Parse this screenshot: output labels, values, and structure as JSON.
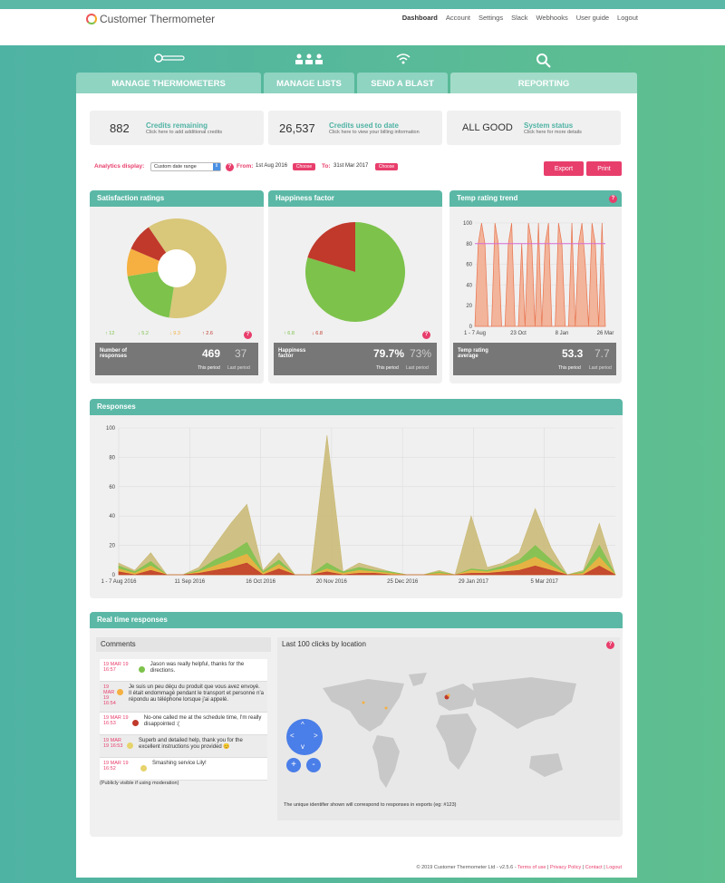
{
  "app": {
    "name": "Customer Thermometer"
  },
  "nav": [
    "Dashboard",
    "Account",
    "Settings",
    "Slack",
    "Webhooks",
    "User guide",
    "Logout"
  ],
  "tabs": [
    "MANAGE THERMOMETERS",
    "MANAGE LISTS",
    "SEND A BLAST",
    "REPORTING"
  ],
  "stats": [
    {
      "value": "882",
      "title": "Credits remaining",
      "sub": "Click here to add additional credits"
    },
    {
      "value": "26,537",
      "title": "Credits used to date",
      "sub": "Click here to view your billing information"
    },
    {
      "value": "ALL GOOD",
      "title": "System status",
      "sub": "Click here for more details"
    }
  ],
  "analytics": {
    "label": "Analytics display:",
    "select": "Custom date range",
    "from_label": "From:",
    "from": "1st Aug 2016",
    "to_label": "To:",
    "to": "31st Mar 2017",
    "choose": "Choose",
    "export": "Export",
    "print": "Print"
  },
  "satisfaction": {
    "title": "Satisfaction ratings",
    "stats": [
      "↑ 12",
      "↓ 5.2",
      "↓ 9.3",
      "↑ 2.6"
    ],
    "label": "Number of responses",
    "this": "469",
    "last": "37",
    "this_label": "This period",
    "last_label": "Last period"
  },
  "happiness": {
    "title": "Happiness factor",
    "stats": [
      "↑ 6.8",
      "↓ 6.8"
    ],
    "label": "Happiness factor",
    "this": "79.7%",
    "last": "73%",
    "this_label": "This period",
    "last_label": "Last period"
  },
  "temp": {
    "title": "Temp rating trend",
    "label": "Temp rating average",
    "this": "53.3",
    "last": "7.7",
    "this_label": "This period",
    "last_label": "Last period"
  },
  "chart_data": [
    {
      "type": "pie",
      "title": "Satisfaction ratings",
      "labels": [
        "Gold",
        "Green",
        "Amber",
        "Red"
      ],
      "values": [
        62,
        20,
        9,
        9
      ],
      "colors": [
        "#d9c77a",
        "#7dc24b",
        "#f5b041",
        "#c0392b"
      ],
      "donut": true
    },
    {
      "type": "pie",
      "title": "Happiness factor",
      "labels": [
        "Happy",
        "Unhappy"
      ],
      "values": [
        79.7,
        20.3
      ],
      "colors": [
        "#7dc24b",
        "#c0392b"
      ]
    },
    {
      "type": "area",
      "title": "Temp rating trend",
      "x_ticks": [
        "1 - 7 Aug",
        "23 Oct",
        "8 Jan",
        "26 Mar"
      ],
      "y_ticks": [
        0,
        20,
        40,
        60,
        80,
        100
      ],
      "ylim": [
        0,
        100
      ],
      "values": [
        0,
        80,
        100,
        80,
        0,
        0,
        100,
        80,
        0,
        0,
        80,
        100,
        0,
        0,
        80,
        0,
        100,
        80,
        0,
        100,
        0,
        80,
        100,
        0,
        0,
        100,
        80,
        0,
        0,
        100,
        0,
        80,
        100,
        60,
        0,
        100,
        80,
        0,
        100,
        0
      ]
    },
    {
      "type": "area",
      "title": "Responses",
      "x_ticks": [
        "1 - 7 Aug 2016",
        "11 Sep 2016",
        "16 Oct 2016",
        "20 Nov 2016",
        "25 Dec 2016",
        "29 Jan 2017",
        "5 Mar 2017"
      ],
      "y_ticks": [
        0,
        20,
        40,
        60,
        80,
        100
      ],
      "ylim": [
        0,
        100
      ],
      "series": [
        {
          "name": "Gold",
          "color": "#c9b872",
          "values": [
            8,
            3,
            15,
            0,
            0,
            5,
            20,
            35,
            48,
            3,
            15,
            0,
            0,
            95,
            2,
            8,
            5,
            2,
            0,
            0,
            3,
            0,
            40,
            5,
            8,
            15,
            45,
            18,
            0,
            3,
            35,
            0
          ]
        },
        {
          "name": "Green",
          "color": "#7dc24b",
          "values": [
            6,
            2,
            9,
            0,
            0,
            3,
            10,
            15,
            22,
            2,
            10,
            0,
            0,
            8,
            2,
            5,
            3,
            2,
            0,
            0,
            2,
            0,
            4,
            3,
            6,
            10,
            20,
            10,
            0,
            2,
            20,
            0
          ]
        },
        {
          "name": "Amber",
          "color": "#f5b041",
          "values": [
            4,
            1,
            6,
            0,
            0,
            2,
            6,
            10,
            14,
            1,
            7,
            0,
            0,
            4,
            1,
            3,
            2,
            1,
            0,
            0,
            1,
            0,
            3,
            2,
            4,
            7,
            12,
            6,
            0,
            1,
            12,
            0
          ]
        },
        {
          "name": "Red",
          "color": "#c0392b",
          "values": [
            2,
            0,
            3,
            0,
            0,
            1,
            3,
            5,
            8,
            0,
            4,
            0,
            0,
            2,
            0,
            1,
            1,
            0,
            0,
            0,
            0,
            0,
            1,
            1,
            2,
            3,
            6,
            3,
            0,
            0,
            6,
            0
          ]
        }
      ]
    }
  ],
  "realtime": {
    "title": "Real time responses",
    "comments_title": "Comments",
    "map_title": "Last 100 clicks by location",
    "map_note": "The unique identifier shown will correspond to responses in exports (eg: #123)",
    "visibility": "(Publicly visible if using moderation)",
    "comments": [
      {
        "date": "19 MAR 19 16:57",
        "color": "#7dc24b",
        "text": "Jason was really helpful, thanks for the directions."
      },
      {
        "date": "19 MAR 19 16:54",
        "color": "#f5b041",
        "text": "Je suis un peu déçu du produit que vous avez envoyé. Il était endommagé pendant le transport et personne n'a répondu au téléphone lorsque j'ai appelé."
      },
      {
        "date": "19 MAR 19 16:53",
        "color": "#c0392b",
        "text": "No-one called me at the schedule time, I'm really disappointed :("
      },
      {
        "date": "19 MAR 19 16:53",
        "color": "#e6d36b",
        "text": "Superb and detailed help, thank you for the excellent instructions you provided 😊"
      },
      {
        "date": "19 MAR 19 16:52",
        "color": "#e6d36b",
        "text": "Smashing service Lily!"
      }
    ]
  },
  "footer": {
    "copyright": "© 2019 Customer Thermometer Ltd - v2.5.6 -",
    "links": [
      "Terms of use",
      "Privacy Policy",
      "Contact",
      "Logout"
    ]
  }
}
